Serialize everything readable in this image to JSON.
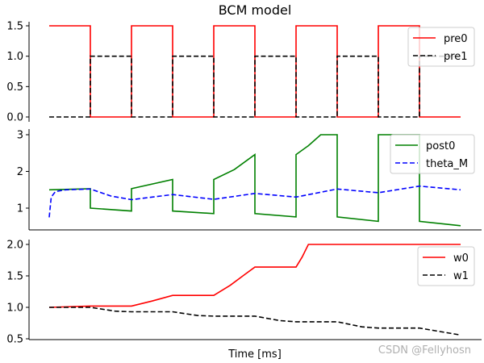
{
  "figure": {
    "title": "BCM model",
    "xlabel": "Time [ms]",
    "watermark": "CSDN @Fellyhosn"
  },
  "colors": {
    "pre0": "#ff0000",
    "pre1": "#000000",
    "post0": "#008000",
    "theta_M": "#0000ff",
    "w0": "#ff0000",
    "w1": "#000000",
    "legend_border": "#cccccc",
    "watermark": "#b0b0b0"
  },
  "chart_data": [
    {
      "type": "line",
      "title": "BCM model",
      "panel": "top",
      "xlabel": "",
      "ylabel": "",
      "ylim": [
        -0.05,
        1.55
      ],
      "yticks": [
        "0.0",
        "0.5",
        "1.0",
        "1.5"
      ],
      "ytick_values": [
        0.0,
        0.5,
        1.0,
        1.5
      ],
      "legend": [
        "pre0",
        "pre1"
      ],
      "legend_position": "upper right",
      "x_segments": 10,
      "series": [
        {
          "name": "pre0",
          "style": "solid",
          "values": [
            1.5,
            0.0,
            1.5,
            0.0,
            1.5,
            0.0,
            1.5,
            0.0,
            1.5,
            0.0
          ]
        },
        {
          "name": "pre1",
          "style": "dashed",
          "values": [
            0.0,
            1.0,
            0.0,
            1.0,
            0.0,
            1.0,
            0.0,
            1.0,
            0.0,
            1.0
          ]
        }
      ]
    },
    {
      "type": "line",
      "panel": "middle",
      "xlabel": "",
      "ylabel": "",
      "ylim": [
        0.4,
        3.1
      ],
      "yticks": [
        "1",
        "2",
        "3"
      ],
      "ytick_values": [
        1,
        2,
        3
      ],
      "legend": [
        "post0",
        "theta_M"
      ],
      "legend_position": "upper right",
      "series": [
        {
          "name": "post0",
          "style": "solid",
          "points": [
            [
              0,
              1.5
            ],
            [
              1,
              1.53
            ],
            [
              1,
              1.0
            ],
            [
              2,
              0.92
            ],
            [
              2,
              1.53
            ],
            [
              3,
              1.78
            ],
            [
              3,
              0.92
            ],
            [
              4,
              0.85
            ],
            [
              4,
              1.78
            ],
            [
              4.5,
              2.05
            ],
            [
              5,
              2.46
            ],
            [
              5,
              0.85
            ],
            [
              6,
              0.76
            ],
            [
              6,
              2.46
            ],
            [
              6.3,
              2.7
            ],
            [
              6.6,
              3.0
            ],
            [
              7,
              3.0
            ],
            [
              7,
              0.76
            ],
            [
              8,
              0.64
            ],
            [
              8,
              3.0
            ],
            [
              9,
              3.0
            ],
            [
              9,
              0.64
            ],
            [
              10,
              0.52
            ]
          ]
        },
        {
          "name": "theta_M",
          "style": "dashed",
          "points": [
            [
              0,
              0.75
            ],
            [
              0.05,
              1.3
            ],
            [
              0.15,
              1.45
            ],
            [
              0.4,
              1.5
            ],
            [
              1,
              1.52
            ],
            [
              1.5,
              1.33
            ],
            [
              2,
              1.23
            ],
            [
              3,
              1.37
            ],
            [
              4,
              1.24
            ],
            [
              5,
              1.4
            ],
            [
              6,
              1.3
            ],
            [
              7,
              1.52
            ],
            [
              8,
              1.42
            ],
            [
              9,
              1.6
            ],
            [
              10,
              1.5
            ]
          ]
        }
      ]
    },
    {
      "type": "line",
      "panel": "bottom",
      "xlabel": "Time [ms]",
      "ylabel": "",
      "ylim": [
        0.48,
        2.05
      ],
      "yticks": [
        "0.5",
        "1.0",
        "1.5",
        "2.0"
      ],
      "ytick_values": [
        0.5,
        1.0,
        1.5,
        2.0
      ],
      "legend": [
        "w0",
        "w1"
      ],
      "legend_position": "upper right",
      "series": [
        {
          "name": "w0",
          "style": "solid",
          "points": [
            [
              0,
              1.0
            ],
            [
              1,
              1.02
            ],
            [
              2,
              1.02
            ],
            [
              2.5,
              1.1
            ],
            [
              3,
              1.19
            ],
            [
              4,
              1.19
            ],
            [
              4.4,
              1.35
            ],
            [
              4.75,
              1.52
            ],
            [
              5,
              1.64
            ],
            [
              6,
              1.64
            ],
            [
              6.15,
              1.8
            ],
            [
              6.3,
              2.0
            ],
            [
              10,
              2.0
            ]
          ]
        },
        {
          "name": "w1",
          "style": "dashed",
          "points": [
            [
              0,
              1.0
            ],
            [
              1,
              1.0
            ],
            [
              1.6,
              0.94
            ],
            [
              2,
              0.93
            ],
            [
              3,
              0.93
            ],
            [
              3.6,
              0.87
            ],
            [
              4,
              0.86
            ],
            [
              5,
              0.86
            ],
            [
              5.6,
              0.79
            ],
            [
              6,
              0.77
            ],
            [
              7,
              0.77
            ],
            [
              7.6,
              0.69
            ],
            [
              8,
              0.67
            ],
            [
              9,
              0.67
            ],
            [
              10,
              0.56
            ]
          ]
        }
      ]
    }
  ]
}
